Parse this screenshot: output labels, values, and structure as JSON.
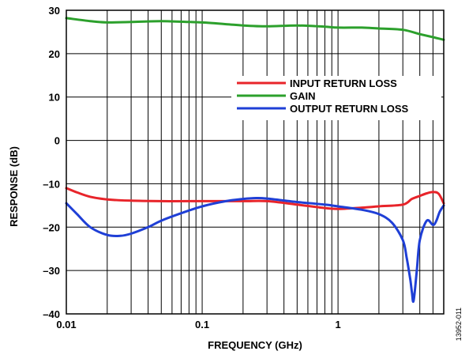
{
  "chart_data": {
    "type": "line",
    "xlabel": "FREQUENCY (GHz)",
    "ylabel": "RESPONSE (dB)",
    "x_scale": "log",
    "xlim": [
      0.01,
      6
    ],
    "ylim": [
      -40,
      30
    ],
    "x_ticks": [
      0.01,
      0.1,
      1
    ],
    "x_tick_labels": [
      "0.01",
      "0.1",
      "1"
    ],
    "y_ticks": [
      30,
      20,
      10,
      0,
      -10,
      -20,
      -30,
      -40
    ],
    "y_tick_labels": [
      "30",
      "20",
      "10",
      "0",
      "–10",
      "–20",
      "–30",
      "–40"
    ],
    "grid": true,
    "legend_position": "right-center",
    "series": [
      {
        "name": "INPUT RETURN LOSS",
        "color": "#e8242a",
        "x": [
          0.01,
          0.012,
          0.015,
          0.02,
          0.03,
          0.05,
          0.08,
          0.1,
          0.2,
          0.3,
          0.5,
          0.8,
          1,
          1.5,
          2,
          3,
          3.5,
          4,
          4.5,
          5,
          5.5,
          6
        ],
        "y": [
          -11,
          -12,
          -13,
          -13.6,
          -13.9,
          -14,
          -14,
          -14,
          -14,
          -14,
          -14.8,
          -15.6,
          -15.8,
          -15.5,
          -15.2,
          -14.8,
          -13.5,
          -12.8,
          -12.2,
          -11.9,
          -12.3,
          -14.5
        ]
      },
      {
        "name": "GAIN",
        "color": "#2ca02c",
        "x": [
          0.01,
          0.015,
          0.02,
          0.03,
          0.05,
          0.08,
          0.1,
          0.15,
          0.2,
          0.3,
          0.5,
          0.8,
          1,
          1.5,
          2,
          3,
          4,
          5,
          6
        ],
        "y": [
          28.2,
          27.5,
          27.2,
          27.3,
          27.5,
          27.3,
          27.2,
          26.8,
          26.5,
          26.3,
          26.5,
          26.2,
          26,
          26,
          25.8,
          25.5,
          24.5,
          23.8,
          23.2
        ]
      },
      {
        "name": "OUTPUT RETURN LOSS",
        "color": "#1f3fd6",
        "x": [
          0.01,
          0.012,
          0.015,
          0.02,
          0.025,
          0.03,
          0.04,
          0.05,
          0.07,
          0.1,
          0.15,
          0.2,
          0.25,
          0.3,
          0.5,
          0.8,
          1,
          1.5,
          2,
          2.5,
          3,
          3.2,
          3.4,
          3.5,
          3.6,
          3.8,
          4,
          4.5,
          5,
          5.3,
          5.6,
          6
        ],
        "y": [
          -14.5,
          -17,
          -20,
          -21.8,
          -22,
          -21.5,
          -20,
          -18.5,
          -16.8,
          -15.2,
          -14,
          -13.5,
          -13.3,
          -13.4,
          -14.2,
          -14.8,
          -15.2,
          -16,
          -17,
          -19,
          -23,
          -27,
          -32,
          -35,
          -37,
          -30,
          -23,
          -18.5,
          -19.5,
          -18.5,
          -16.5,
          -15
        ]
      }
    ]
  },
  "side_note": "13952-011"
}
